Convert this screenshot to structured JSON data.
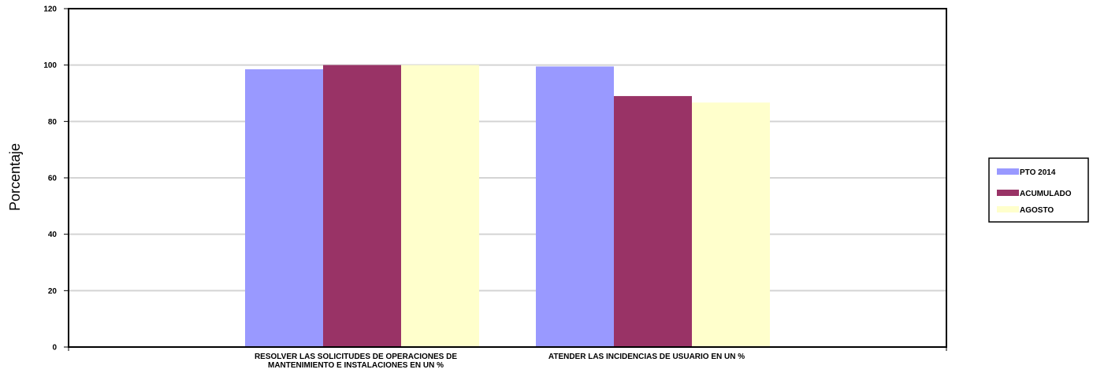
{
  "chart_data": {
    "type": "bar",
    "categories": [
      [
        "RESOLVER LAS SOLICITUDES DE OPERACIONES DE",
        "MANTENIMIENTO E INSTALACIONES EN UN %"
      ],
      [
        "ATENDER LAS INCIDENCIAS DE USUARIO EN UN %"
      ]
    ],
    "series": [
      {
        "name": "PTO 2014",
        "values": [
          98.5,
          99.5
        ],
        "color": "#9999ff"
      },
      {
        "name": "ACUMULADO",
        "values": [
          100,
          89
        ],
        "color": "#993366"
      },
      {
        "name": "AGOSTO",
        "values": [
          100,
          86.7
        ],
        "color": "#ffffcc"
      }
    ],
    "title": "",
    "xlabel": "",
    "ylabel": "Porcentaje",
    "ylim": [
      0,
      120
    ],
    "yticks": [
      0,
      20,
      40,
      60,
      80,
      100,
      120
    ],
    "grid": true,
    "legend_position": "right"
  }
}
